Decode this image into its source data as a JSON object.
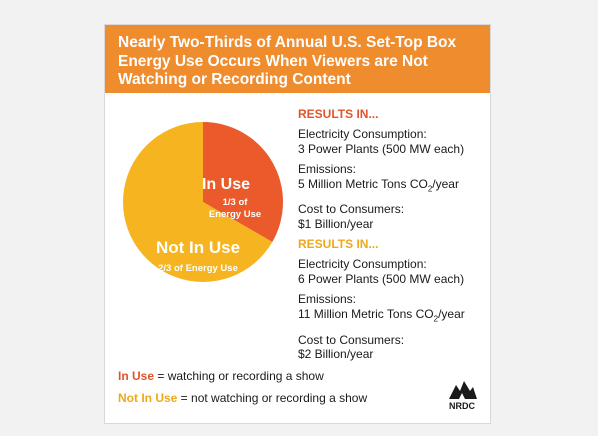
{
  "colors": {
    "header_bg": "#ef8c2e",
    "in_use": "#ea5a2a",
    "not_in_use": "#f6b420",
    "results_heading_1": "#e1542a",
    "results_heading_2": "#f0a81b",
    "legend_in_use": "#e1542a",
    "legend_not_in_use": "#f0a81b"
  },
  "header": {
    "title_lines": [
      "Nearly Two-Thirds of Annual U.S. Set-Top Box",
      "Energy Use Occurs When Viewers are Not",
      "Watching or Recording Content"
    ]
  },
  "chart_data": {
    "type": "pie",
    "slices": [
      {
        "name": "In Use",
        "label": "In Use",
        "sublabel_lines": [
          "1/3 of",
          "Energy Use"
        ],
        "value": 0.3333
      },
      {
        "name": "Not In Use",
        "label": "Not In Use",
        "sublabel_lines": [
          "2/3 of Energy Use"
        ],
        "value": 0.6667
      }
    ]
  },
  "results": [
    {
      "heading": "RESULTS IN...",
      "items": [
        {
          "label": "Electricity Consumption:",
          "value": "3 Power Plants (500 MW each)"
        },
        {
          "label": "Emissions:",
          "value": "5 Million Metric Tons CO",
          "sub": "2",
          "suffix": "/year"
        },
        {
          "label": "Cost to Consumers:",
          "value": "$1 Billion/year"
        }
      ]
    },
    {
      "heading": "RESULTS IN...",
      "items": [
        {
          "label": "Electricity Consumption:",
          "value": "6 Power Plants (500 MW each)"
        },
        {
          "label": "Emissions:",
          "value": "11 Million Metric Tons CO",
          "sub": "2",
          "suffix": "/year"
        },
        {
          "label": "Cost to Consumers:",
          "value": "$2 Billion/year"
        }
      ]
    }
  ],
  "legend": [
    {
      "term": "In Use",
      "definition": " = watching or recording a show"
    },
    {
      "term": "Not In Use",
      "definition": " = not watching or recording a show"
    }
  ],
  "logo": {
    "text": "NRDC",
    "icon": "nrdc-logo-icon"
  }
}
